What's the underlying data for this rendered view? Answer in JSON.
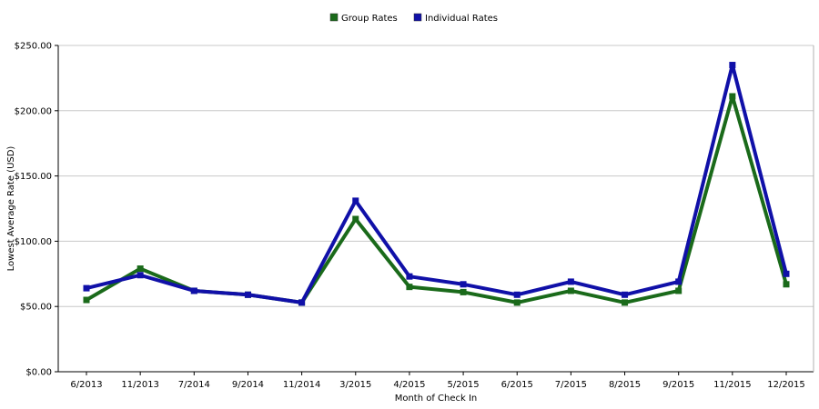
{
  "chart_data": {
    "type": "line",
    "xlabel": "Month of Check In",
    "ylabel": "Lowest Average Rate (USD)",
    "categories": [
      "6/2013",
      "11/2013",
      "7/2014",
      "9/2014",
      "11/2014",
      "3/2015",
      "4/2015",
      "5/2015",
      "6/2015",
      "7/2015",
      "8/2015",
      "9/2015",
      "11/2015",
      "12/2015"
    ],
    "ylim": [
      0,
      250
    ],
    "yticks": [
      0,
      50,
      100,
      150,
      200,
      250
    ],
    "ytick_labels": [
      "$0.00",
      "$50.00",
      "$100.00",
      "$150.00",
      "$200.00",
      "$250.00"
    ],
    "grid": true,
    "legend_position": "top-center",
    "series": [
      {
        "name": "Group Rates",
        "color": "#1a6a1a",
        "values": [
          55,
          79,
          62,
          59,
          53,
          117,
          65,
          61,
          53,
          62,
          53,
          62,
          211,
          67
        ]
      },
      {
        "name": "Individual Rates",
        "color": "#1010a8",
        "values": [
          64,
          74,
          62,
          59,
          53,
          131,
          73,
          67,
          59,
          69,
          59,
          69,
          235,
          75
        ]
      }
    ]
  }
}
